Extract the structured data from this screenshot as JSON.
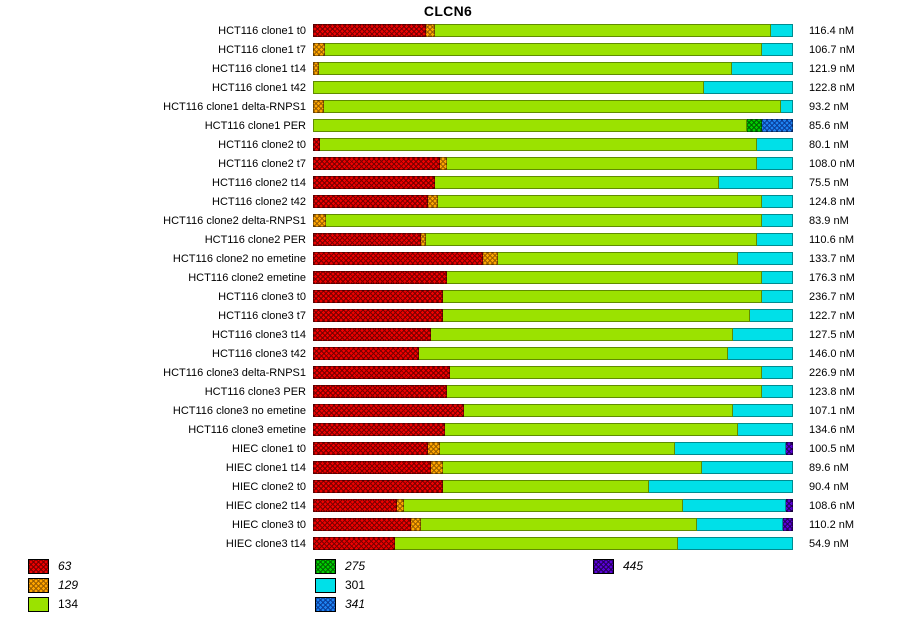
{
  "chart_data": {
    "type": "bar",
    "orientation": "horizontal",
    "stacked": true,
    "title": "CLCN6",
    "unit": "nM",
    "legend_position": "bottom",
    "grid": false,
    "legend": [
      {
        "label": "63",
        "color": "#ee0000",
        "pattern": "crosshatch",
        "pattern_color": "#7a0000",
        "italic": true,
        "column": 0
      },
      {
        "label": "129",
        "color": "#ffa500",
        "pattern": "crosshatch",
        "pattern_color": "#9c6000",
        "italic": true,
        "column": 0
      },
      {
        "label": "134",
        "color": "#9be200",
        "pattern": "solid",
        "pattern_color": "",
        "italic": false,
        "column": 0
      },
      {
        "label": "275",
        "color": "#00cc00",
        "pattern": "crosshatch",
        "pattern_color": "#006600",
        "italic": true,
        "column": 1
      },
      {
        "label": "301",
        "color": "#00e0e8",
        "pattern": "solid",
        "pattern_color": "",
        "italic": false,
        "column": 1
      },
      {
        "label": "341",
        "color": "#1e82f0",
        "pattern": "crosshatch",
        "pattern_color": "#0a3f9c",
        "italic": true,
        "column": 1
      },
      {
        "label": "445",
        "color": "#5a00d8",
        "pattern": "crosshatch",
        "pattern_color": "#26005e",
        "italic": true,
        "column": 2
      }
    ],
    "rows": [
      {
        "label": "HCT116 clone1 t0",
        "value": "116.4 nM",
        "segments": {
          "63": 23.5,
          "129": 2,
          "134": 70,
          "301": 4.5
        }
      },
      {
        "label": "HCT116 clone1 t7",
        "value": "106.7 nM",
        "segments": {
          "129": 2.5,
          "134": 91,
          "301": 6.5
        }
      },
      {
        "label": "HCT116 clone1 t14",
        "value": "121.9 nM",
        "segments": {
          "129": 1.2,
          "134": 86,
          "301": 12.8
        }
      },
      {
        "label": "HCT116 clone1 t42",
        "value": "122.8 nM",
        "segments": {
          "134": 81.5,
          "301": 18.5
        }
      },
      {
        "label": "HCT116 clone1 delta-RNPS1",
        "value": "93.2 nM",
        "segments": {
          "129": 2.2,
          "134": 95.3,
          "301": 2.5
        }
      },
      {
        "label": "HCT116 clone1 PER",
        "value": "85.6 nM",
        "segments": {
          "134": 90.5,
          "275": 3,
          "341": 6.5
        }
      },
      {
        "label": "HCT116 clone2 t0",
        "value": "80.1 nM",
        "segments": {
          "63": 1.5,
          "134": 91,
          "301": 7.5
        }
      },
      {
        "label": "HCT116 clone2 t7",
        "value": "108.0 nM",
        "segments": {
          "63": 26.5,
          "129": 1.5,
          "134": 64.5,
          "301": 7.5
        }
      },
      {
        "label": "HCT116 clone2 t14",
        "value": "75.5 nM",
        "segments": {
          "63": 25.5,
          "134": 59,
          "301": 15.5
        }
      },
      {
        "label": "HCT116 clone2 t42",
        "value": "124.8 nM",
        "segments": {
          "63": 24,
          "129": 2,
          "134": 67.5,
          "301": 6.5
        }
      },
      {
        "label": "HCT116 clone2 delta-RNPS1",
        "value": "83.9 nM",
        "segments": {
          "129": 2.8,
          "134": 90.7,
          "301": 6.5
        }
      },
      {
        "label": "HCT116 clone2 PER",
        "value": "110.6 nM",
        "segments": {
          "63": 22.5,
          "129": 1,
          "134": 69,
          "301": 7.5
        }
      },
      {
        "label": "HCT116 clone2 no emetine",
        "value": "133.7 nM",
        "segments": {
          "63": 35.5,
          "129": 3,
          "134": 50,
          "301": 11.5
        }
      },
      {
        "label": "HCT116 clone2 emetine",
        "value": "176.3 nM",
        "segments": {
          "63": 28,
          "134": 65.5,
          "301": 6.5
        }
      },
      {
        "label": "HCT116 clone3 t0",
        "value": "236.7 nM",
        "segments": {
          "63": 27,
          "134": 66.5,
          "301": 6.5
        }
      },
      {
        "label": "HCT116 clone3 t7",
        "value": "122.7 nM",
        "segments": {
          "63": 27,
          "134": 64,
          "301": 9
        }
      },
      {
        "label": "HCT116 clone3 t14",
        "value": "127.5 nM",
        "segments": {
          "63": 24.5,
          "134": 63,
          "301": 12.5
        }
      },
      {
        "label": "HCT116 clone3 t42",
        "value": "146.0 nM",
        "segments": {
          "63": 22,
          "134": 64.5,
          "301": 13.5
        }
      },
      {
        "label": "HCT116 clone3 delta-RNPS1",
        "value": "226.9 nM",
        "segments": {
          "63": 28.5,
          "134": 65,
          "301": 6.5
        }
      },
      {
        "label": "HCT116 clone3 PER",
        "value": "123.8 nM",
        "segments": {
          "63": 28,
          "134": 65.5,
          "301": 6.5
        }
      },
      {
        "label": "HCT116 clone3 no emetine",
        "value": "107.1 nM",
        "segments": {
          "63": 31.5,
          "134": 56,
          "301": 12.5
        }
      },
      {
        "label": "HCT116 clone3 emetine",
        "value": "134.6 nM",
        "segments": {
          "63": 27.5,
          "134": 61,
          "301": 11.5
        }
      },
      {
        "label": "HIEC clone1 t0",
        "value": "100.5 nM",
        "segments": {
          "63": 24,
          "129": 2.5,
          "134": 49,
          "301": 23,
          "445": 1.5
        }
      },
      {
        "label": "HIEC clone1 t14",
        "value": "89.6 nM",
        "segments": {
          "63": 24.5,
          "129": 2.5,
          "134": 54,
          "301": 19
        }
      },
      {
        "label": "HIEC clone2 t0",
        "value": "90.4 nM",
        "segments": {
          "63": 27,
          "134": 43,
          "301": 30
        }
      },
      {
        "label": "HIEC clone2 t14",
        "value": "108.6 nM",
        "segments": {
          "63": 17.5,
          "129": 1.5,
          "134": 58,
          "301": 21.5,
          "445": 1.5
        }
      },
      {
        "label": "HIEC clone3 t0",
        "value": "110.2 nM",
        "segments": {
          "63": 20.5,
          "129": 2,
          "134": 57.5,
          "301": 18,
          "445": 2
        }
      },
      {
        "label": "HIEC clone3 t14",
        "value": "54.9 nM",
        "segments": {
          "63": 17,
          "134": 59,
          "301": 24
        }
      }
    ]
  }
}
